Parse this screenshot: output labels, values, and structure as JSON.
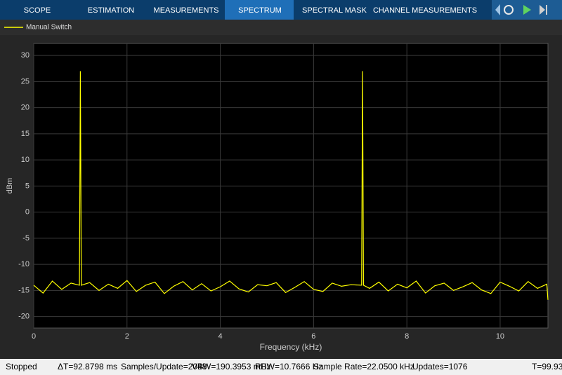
{
  "toolbar": {
    "tabs": [
      "SCOPE",
      "ESTIMATION",
      "MEASUREMENTS",
      "SPECTRUM",
      "SPECTRAL MASK",
      "CHANNEL MEASUREMENTS"
    ]
  },
  "status": [
    "Stopped",
    "ΔT=92.8798 ms",
    "Samples/Update=2048",
    "VBW=190.3953 mHz",
    "RBW=10.7666 Hz",
    "Sample Rate=22.0500 kHz",
    "Updates=1076",
    "T=99.93"
  ],
  "chart_data": {
    "type": "line",
    "x_label": "Frequency (kHz)",
    "y_label": "dBm",
    "xlim": [
      0,
      11.025
    ],
    "xticks": [
      0,
      2,
      4,
      6,
      8,
      10
    ],
    "ylim": [
      -22.2,
      32.3
    ],
    "yticks": [
      -20,
      -15,
      -10,
      -5,
      0,
      5,
      10,
      15,
      20,
      25,
      30
    ],
    "grid": true,
    "x": [
      0,
      0.2,
      0.4,
      0.6,
      0.8,
      0.98,
      1,
      1.02,
      1.2,
      1.4,
      1.6,
      1.8,
      2,
      2.2,
      2.4,
      2.6,
      2.8,
      3,
      3.2,
      3.4,
      3.6,
      3.8,
      4,
      4.2,
      4.4,
      4.6,
      4.8,
      5,
      5.2,
      5.4,
      5.6,
      5.8,
      6,
      6.2,
      6.4,
      6.6,
      6.8,
      7.03,
      7.05,
      7.07,
      7.2,
      7.4,
      7.6,
      7.8,
      8,
      8.2,
      8.4,
      8.6,
      8.8,
      9,
      9.2,
      9.4,
      9.6,
      9.8,
      10,
      10.2,
      10.4,
      10.6,
      10.8,
      11,
      11.025
    ],
    "series": [
      {
        "name": "Manual Switch",
        "color": "#ffff00",
        "values": [
          -14,
          -15.5,
          -13.2,
          -14.8,
          -13.6,
          -14,
          27,
          -14,
          -13.5,
          -15,
          -13.8,
          -14.6,
          -13.1,
          -15.2,
          -14,
          -13.4,
          -15.6,
          -14.2,
          -13.3,
          -14.9,
          -13.7,
          -15.1,
          -14.3,
          -13.2,
          -14.7,
          -15.3,
          -13.9,
          -14.1,
          -13.5,
          -15.4,
          -14.4,
          -13.3,
          -14.8,
          -15.2,
          -13.6,
          -14.2,
          -13.9,
          -14,
          27,
          -14,
          -14.6,
          -13.4,
          -15.1,
          -13.8,
          -14.5,
          -13.2,
          -15.5,
          -14.1,
          -13.6,
          -15,
          -14.3,
          -13.5,
          -14.9,
          -15.6,
          -13.4,
          -14.2,
          -15.1,
          -13.3,
          -14.6,
          -13.8,
          -16.8
        ]
      }
    ]
  }
}
